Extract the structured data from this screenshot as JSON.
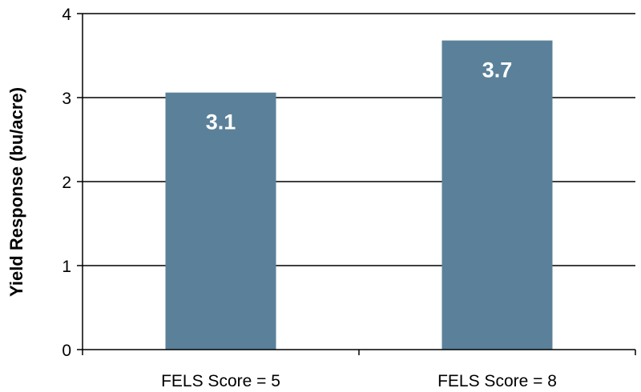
{
  "chart_data": {
    "type": "bar",
    "title": "",
    "xlabel": "",
    "ylabel": "Yield Response (bu/acre)",
    "categories": [
      "FELS Score = 5",
      "FELS Score = 8"
    ],
    "values": [
      3.06,
      3.68
    ],
    "data_labels": [
      "3.1",
      "3.7"
    ],
    "ylim": [
      0,
      4
    ],
    "yticks": [
      "0",
      "1",
      "2",
      "3",
      "4"
    ],
    "grid": true,
    "legend": "none",
    "colors": {
      "bar": "#5a8199",
      "grid": "#000000",
      "label": "#ffffff"
    }
  }
}
